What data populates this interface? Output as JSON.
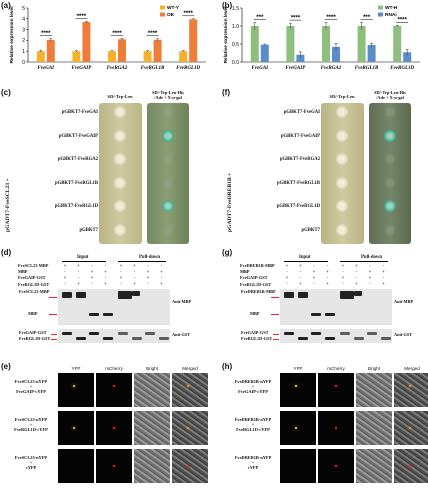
{
  "panels": {
    "a": "(a)",
    "b": "(b)",
    "c": "(c)",
    "d": "(d)",
    "e": "(e)",
    "f": "(f)",
    "g": "(g)",
    "h": "(h)"
  },
  "chart_data": [
    {
      "type": "bar",
      "ylabel": "Relative expression level",
      "ylim": [
        0,
        5
      ],
      "yticks": [
        "0",
        "1",
        "2",
        "3",
        "4",
        "5"
      ],
      "categories": [
        "FveGAI",
        "FveGAIP",
        "FveRGA2",
        "FveRGL1B",
        "FveRGL1D"
      ],
      "series": [
        {
          "name": "WT-Y",
          "color": "#f5b12d",
          "values": [
            1.0,
            1.0,
            1.0,
            1.0,
            1.0
          ],
          "err": [
            0.1,
            0.05,
            0.05,
            0.05,
            0.05
          ]
        },
        {
          "name": "OE",
          "color": "#ef7d3a",
          "values": [
            2.05,
            3.7,
            2.1,
            2.05,
            3.95
          ],
          "err": [
            0.12,
            0.06,
            0.08,
            0.1,
            0.05
          ]
        }
      ],
      "significance": [
        "****",
        "****",
        "****",
        "****",
        "****"
      ]
    },
    {
      "type": "bar",
      "ylabel": "Relative expression level",
      "ylim": [
        0,
        1.5
      ],
      "yticks": [
        "0.0",
        "0.5",
        "1.0",
        "1.5"
      ],
      "categories": [
        "FveGAI",
        "FveGAIP",
        "FveRGA2",
        "FveRGL1B",
        "FveRGL1D"
      ],
      "series": [
        {
          "name": "WT-H",
          "color": "#8fbf7f",
          "values": [
            1.0,
            1.0,
            1.0,
            1.0,
            1.0
          ],
          "err": [
            0.1,
            0.08,
            0.1,
            0.1,
            0.02
          ]
        },
        {
          "name": "RNAi",
          "color": "#5b8ec9",
          "values": [
            0.48,
            0.2,
            0.42,
            0.47,
            0.27
          ],
          "err": [
            0.02,
            0.08,
            0.1,
            0.05,
            0.08
          ]
        }
      ],
      "significance": [
        "***",
        "****",
        "****",
        "***",
        "****"
      ]
    }
  ],
  "y2h": {
    "col1": "SD/-Trp-Leu",
    "col2": "SD/-Trp-Leu-His\n/Ade + X-α-gal",
    "rows": [
      "pGBKT7-FveGAI",
      "pGBKT7-FveGAIP",
      "pGBKT7-FveRGA2",
      "pGBKT7-FveRGL1B",
      "pGBKT7-FveRGL1D",
      "pGBKT7"
    ],
    "left_side": "pGADT7-FveSCL23 +",
    "right_side": "pGADT7-FveDREB1B +",
    "left_blue": [
      false,
      true,
      false,
      false,
      true,
      false
    ],
    "right_blue": [
      false,
      true,
      false,
      false,
      true,
      false
    ]
  },
  "pulldown_left": {
    "input": "Input",
    "pulldown": "Pull-down",
    "rows": [
      "FveSCL23-MBP",
      "MBP",
      "FveGAIP-GST",
      "FveRGL1D-GST"
    ],
    "signs": [
      [
        "+",
        "+",
        "-",
        "-",
        "+",
        "+",
        "-",
        "-"
      ],
      [
        "-",
        "-",
        "+",
        "+",
        "-",
        "-",
        "+",
        "+"
      ],
      [
        "+",
        "-",
        "+",
        "-",
        "+",
        "-",
        "+",
        "-"
      ],
      [
        "-",
        "+",
        "-",
        "+",
        "-",
        "+",
        "-",
        "+"
      ]
    ],
    "band1": "FveSCL23-MBP",
    "band2": "MBP",
    "band3": "FveGAIP-GST",
    "band4": "FveRGL1D-GST",
    "anti1": "Anti-MBP",
    "anti2": "Anti-GST"
  },
  "pulldown_right": {
    "input": "Input",
    "pulldown": "Pull-down",
    "rows": [
      "FveDREB1B-MBP",
      "MBP",
      "FveGAIP-GST",
      "FveRGL1D-GST"
    ],
    "signs": [
      [
        "+",
        "+",
        "-",
        "-",
        "+",
        "+",
        "-",
        "-"
      ],
      [
        "-",
        "-",
        "+",
        "+",
        "-",
        "-",
        "+",
        "+"
      ],
      [
        "+",
        "-",
        "+",
        "-",
        "+",
        "-",
        "+",
        "-"
      ],
      [
        "-",
        "+",
        "-",
        "+",
        "-",
        "+",
        "-",
        "+"
      ]
    ],
    "band1": "FveDREB1B-MBP",
    "band2": "MBP",
    "band3": "FveGAIP-GST",
    "band4": "FveRGL1D-GST",
    "anti1": "Anti-MBP",
    "anti2": "Anti-GST"
  },
  "bifc_left": {
    "cols": [
      "YFP",
      "mCherry",
      "Bright",
      "Merged"
    ],
    "rows": [
      "FveSCL23-nYFP\n+\nFveGAIP-cYFP",
      "FveSCL23-nYFP\n+\nFveRGL1D-cYFP",
      "FveSCL23-nYFP\n+\ncYFP"
    ]
  },
  "bifc_right": {
    "cols": [
      "YFP",
      "mCherry",
      "Bright",
      "Merged"
    ],
    "rows": [
      "FveDREB1B-nYFP\n+\nFveGAIP-cYFP",
      "FveDREB1B-nYFP\n+\nFveRGL1D-cYFP",
      "FveDREB1B-nYFP\n+\ncYFP"
    ]
  }
}
